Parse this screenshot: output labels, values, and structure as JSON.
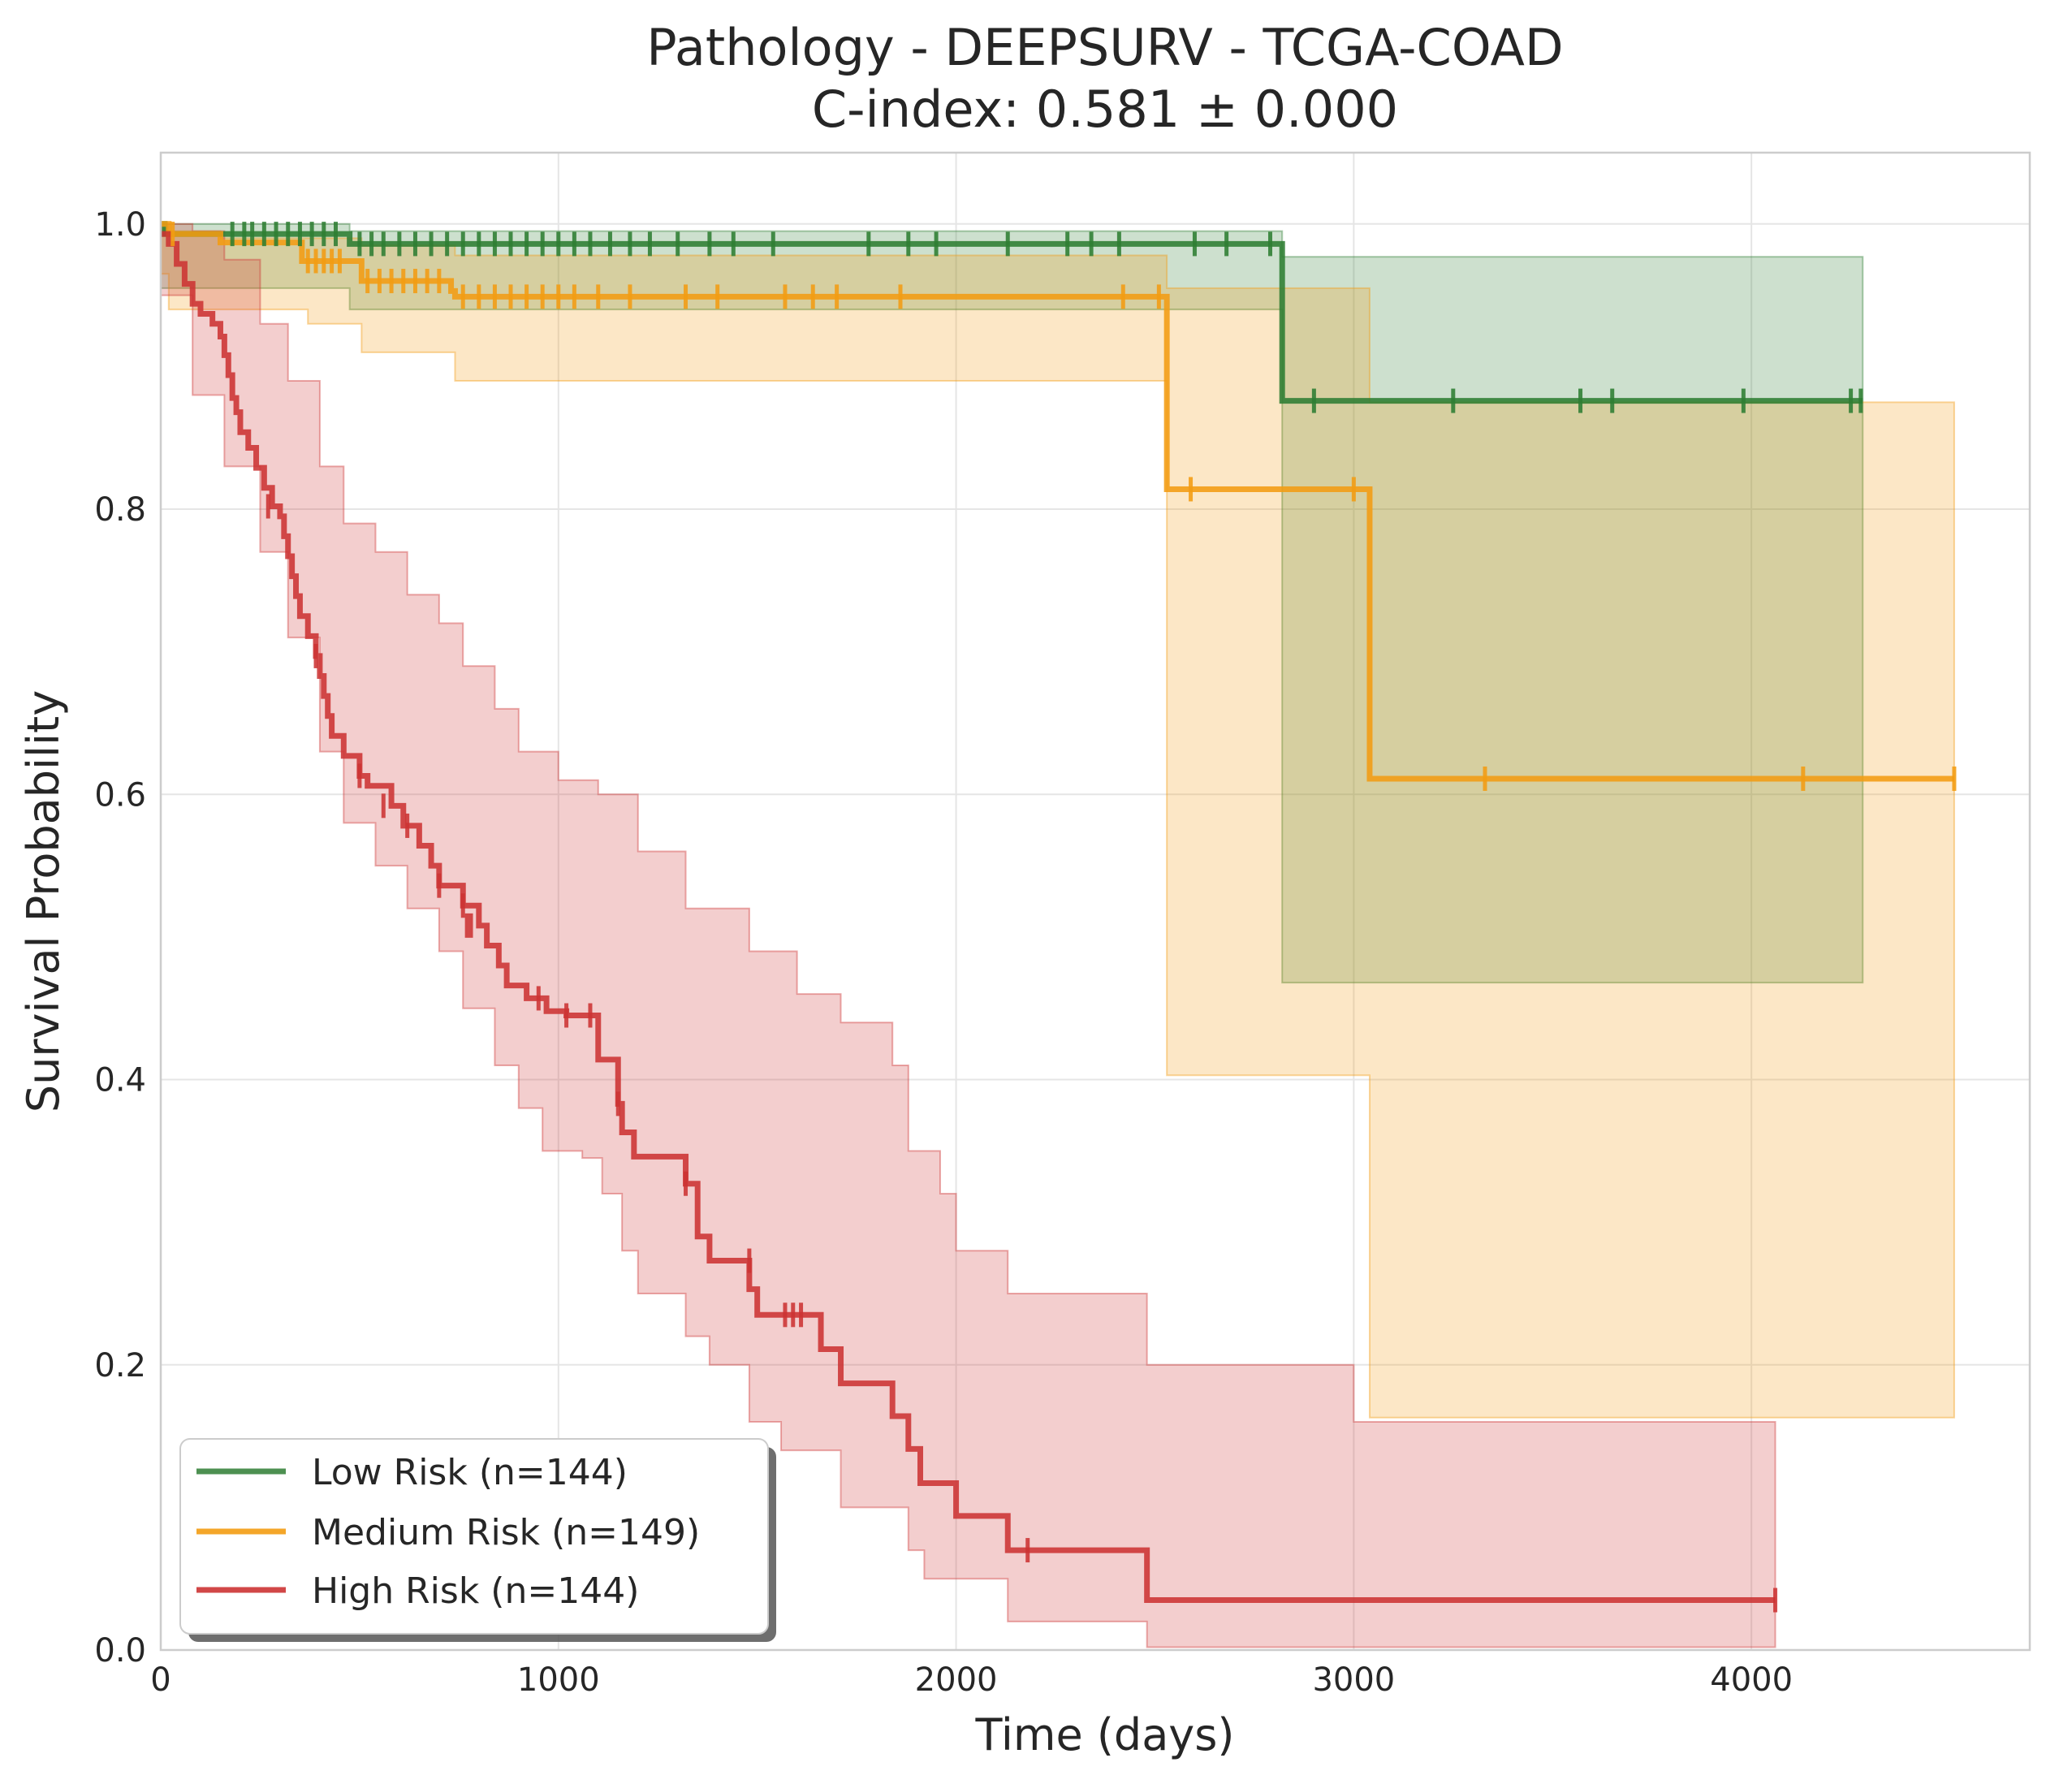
{
  "chart_data": {
    "type": "line",
    "subtype": "kaplan-meier",
    "title": "Pathology - DEEPSURV - TCGA-COAD",
    "subtitle": "C-index: 0.581 ± 0.000",
    "xlabel": "Time (days)",
    "ylabel": "Survival Probability",
    "xlim": [
      0,
      4700
    ],
    "ylim": [
      0,
      1.05
    ],
    "xticks": [
      0,
      1000,
      2000,
      3000,
      4000
    ],
    "xtick_labels": [
      "0",
      "1000",
      "2000",
      "3000",
      "4000"
    ],
    "yticks": [
      0.0,
      0.2,
      0.4,
      0.6,
      0.8,
      1.0
    ],
    "ytick_labels": [
      "0.0",
      "0.2",
      "0.4",
      "0.6",
      "0.8",
      "1.0"
    ],
    "grid": true,
    "legend_position": "lower-left",
    "series": [
      {
        "name": "Low Risk (n=144)",
        "color": "#2e7d32",
        "steps": [
          [
            0,
            1.0
          ],
          [
            10,
            0.993
          ],
          [
            475,
            0.986
          ],
          [
            2820,
            0.876
          ],
          [
            4280,
            0.876
          ]
        ],
        "ci_lower": [
          [
            0,
            0.955
          ],
          [
            10,
            0.955
          ],
          [
            475,
            0.94
          ],
          [
            2820,
            0.468
          ],
          [
            4280,
            0.468
          ]
        ],
        "ci_upper": [
          [
            0,
            1.0
          ],
          [
            10,
            1.0
          ],
          [
            475,
            0.995
          ],
          [
            2820,
            0.977
          ],
          [
            4280,
            0.977
          ]
        ],
        "censored": [
          [
            180,
            0.993
          ],
          [
            210,
            0.993
          ],
          [
            230,
            0.993
          ],
          [
            260,
            0.993
          ],
          [
            290,
            0.993
          ],
          [
            320,
            0.993
          ],
          [
            350,
            0.993
          ],
          [
            380,
            0.993
          ],
          [
            410,
            0.993
          ],
          [
            440,
            0.993
          ],
          [
            500,
            0.986
          ],
          [
            530,
            0.986
          ],
          [
            560,
            0.986
          ],
          [
            600,
            0.986
          ],
          [
            640,
            0.986
          ],
          [
            680,
            0.986
          ],
          [
            720,
            0.986
          ],
          [
            760,
            0.986
          ],
          [
            800,
            0.986
          ],
          [
            840,
            0.986
          ],
          [
            880,
            0.986
          ],
          [
            920,
            0.986
          ],
          [
            960,
            0.986
          ],
          [
            1000,
            0.986
          ],
          [
            1040,
            0.986
          ],
          [
            1080,
            0.986
          ],
          [
            1130,
            0.986
          ],
          [
            1180,
            0.986
          ],
          [
            1230,
            0.986
          ],
          [
            1300,
            0.986
          ],
          [
            1380,
            0.986
          ],
          [
            1440,
            0.986
          ],
          [
            1540,
            0.986
          ],
          [
            1780,
            0.986
          ],
          [
            1880,
            0.986
          ],
          [
            1950,
            0.986
          ],
          [
            2130,
            0.986
          ],
          [
            2280,
            0.986
          ],
          [
            2340,
            0.986
          ],
          [
            2410,
            0.986
          ],
          [
            2600,
            0.986
          ],
          [
            2680,
            0.986
          ],
          [
            2790,
            0.986
          ],
          [
            2900,
            0.876
          ],
          [
            3250,
            0.876
          ],
          [
            3570,
            0.876
          ],
          [
            3650,
            0.876
          ],
          [
            3980,
            0.876
          ],
          [
            4250,
            0.876
          ],
          [
            4275,
            0.876
          ]
        ]
      },
      {
        "name": "Medium Risk (n=149)",
        "color": "#f39c12",
        "steps": [
          [
            0,
            1.0
          ],
          [
            20,
            0.993
          ],
          [
            150,
            0.987
          ],
          [
            355,
            0.974
          ],
          [
            505,
            0.96
          ],
          [
            730,
            0.953
          ],
          [
            740,
            0.949
          ],
          [
            2530,
            0.814
          ],
          [
            3040,
            0.611
          ],
          [
            4510,
            0.611
          ]
        ],
        "ci_lower": [
          [
            0,
            0.965
          ],
          [
            20,
            0.94
          ],
          [
            370,
            0.93
          ],
          [
            505,
            0.91
          ],
          [
            740,
            0.89
          ],
          [
            2530,
            0.403
          ],
          [
            3040,
            0.163
          ],
          [
            4510,
            0.163
          ]
        ],
        "ci_upper": [
          [
            0,
            1.0
          ],
          [
            20,
            0.995
          ],
          [
            150,
            0.99
          ],
          [
            505,
            0.985
          ],
          [
            740,
            0.978
          ],
          [
            2530,
            0.955
          ],
          [
            3040,
            0.875
          ],
          [
            4510,
            0.875
          ]
        ],
        "censored": [
          [
            30,
            0.993
          ],
          [
            370,
            0.974
          ],
          [
            390,
            0.974
          ],
          [
            410,
            0.974
          ],
          [
            430,
            0.974
          ],
          [
            450,
            0.974
          ],
          [
            520,
            0.96
          ],
          [
            550,
            0.96
          ],
          [
            580,
            0.96
          ],
          [
            610,
            0.96
          ],
          [
            640,
            0.96
          ],
          [
            670,
            0.96
          ],
          [
            700,
            0.96
          ],
          [
            760,
            0.949
          ],
          [
            800,
            0.949
          ],
          [
            840,
            0.949
          ],
          [
            880,
            0.949
          ],
          [
            920,
            0.949
          ],
          [
            960,
            0.949
          ],
          [
            1000,
            0.949
          ],
          [
            1040,
            0.949
          ],
          [
            1100,
            0.949
          ],
          [
            1180,
            0.949
          ],
          [
            1320,
            0.949
          ],
          [
            1400,
            0.949
          ],
          [
            1570,
            0.949
          ],
          [
            1640,
            0.949
          ],
          [
            1700,
            0.949
          ],
          [
            1860,
            0.949
          ],
          [
            2420,
            0.949
          ],
          [
            2510,
            0.949
          ],
          [
            2590,
            0.814
          ],
          [
            3000,
            0.814
          ],
          [
            3330,
            0.611
          ],
          [
            4130,
            0.611
          ],
          [
            4510,
            0.611
          ]
        ]
      },
      {
        "name": "High Risk (n=144)",
        "color": "#cc3333",
        "steps": [
          [
            0,
            0.993
          ],
          [
            20,
            0.986
          ],
          [
            40,
            0.972
          ],
          [
            60,
            0.958
          ],
          [
            80,
            0.944
          ],
          [
            100,
            0.937
          ],
          [
            130,
            0.93
          ],
          [
            150,
            0.921
          ],
          [
            160,
            0.908
          ],
          [
            170,
            0.894
          ],
          [
            180,
            0.878
          ],
          [
            190,
            0.868
          ],
          [
            200,
            0.854
          ],
          [
            220,
            0.843
          ],
          [
            240,
            0.829
          ],
          [
            260,
            0.815
          ],
          [
            280,
            0.802
          ],
          [
            300,
            0.795
          ],
          [
            310,
            0.781
          ],
          [
            320,
            0.767
          ],
          [
            330,
            0.753
          ],
          [
            340,
            0.739
          ],
          [
            350,
            0.725
          ],
          [
            370,
            0.711
          ],
          [
            390,
            0.697
          ],
          [
            400,
            0.683
          ],
          [
            410,
            0.669
          ],
          [
            420,
            0.655
          ],
          [
            430,
            0.641
          ],
          [
            460,
            0.627
          ],
          [
            500,
            0.613
          ],
          [
            520,
            0.606
          ],
          [
            580,
            0.592
          ],
          [
            610,
            0.578
          ],
          [
            650,
            0.564
          ],
          [
            680,
            0.55
          ],
          [
            700,
            0.536
          ],
          [
            760,
            0.522
          ],
          [
            800,
            0.508
          ],
          [
            820,
            0.494
          ],
          [
            850,
            0.48
          ],
          [
            870,
            0.466
          ],
          [
            920,
            0.457
          ],
          [
            970,
            0.448
          ],
          [
            1020,
            0.445
          ],
          [
            1100,
            0.414
          ],
          [
            1150,
            0.383
          ],
          [
            1160,
            0.363
          ],
          [
            1190,
            0.346
          ],
          [
            1320,
            0.327
          ],
          [
            1350,
            0.29
          ],
          [
            1380,
            0.273
          ],
          [
            1480,
            0.253
          ],
          [
            1500,
            0.235
          ],
          [
            1660,
            0.211
          ],
          [
            1710,
            0.187
          ],
          [
            1840,
            0.164
          ],
          [
            1880,
            0.141
          ],
          [
            1910,
            0.117
          ],
          [
            2000,
            0.094
          ],
          [
            2130,
            0.07
          ],
          [
            2480,
            0.035
          ],
          [
            4060,
            0.035
          ]
        ],
        "ci_lower": [
          [
            0,
            0.95
          ],
          [
            80,
            0.88
          ],
          [
            160,
            0.83
          ],
          [
            250,
            0.77
          ],
          [
            320,
            0.71
          ],
          [
            400,
            0.63
          ],
          [
            460,
            0.58
          ],
          [
            540,
            0.55
          ],
          [
            620,
            0.52
          ],
          [
            700,
            0.49
          ],
          [
            760,
            0.45
          ],
          [
            840,
            0.41
          ],
          [
            900,
            0.38
          ],
          [
            960,
            0.35
          ],
          [
            1060,
            0.345
          ],
          [
            1110,
            0.32
          ],
          [
            1160,
            0.28
          ],
          [
            1200,
            0.25
          ],
          [
            1320,
            0.22
          ],
          [
            1380,
            0.2
          ],
          [
            1480,
            0.16
          ],
          [
            1560,
            0.14
          ],
          [
            1710,
            0.1
          ],
          [
            1880,
            0.07
          ],
          [
            1920,
            0.05
          ],
          [
            2130,
            0.02
          ],
          [
            2480,
            0.002
          ],
          [
            4060,
            0.002
          ]
        ],
        "ci_upper": [
          [
            0,
            1.0
          ],
          [
            40,
            1.0
          ],
          [
            80,
            0.995
          ],
          [
            160,
            0.975
          ],
          [
            250,
            0.93
          ],
          [
            320,
            0.89
          ],
          [
            400,
            0.83
          ],
          [
            460,
            0.79
          ],
          [
            540,
            0.77
          ],
          [
            620,
            0.74
          ],
          [
            700,
            0.72
          ],
          [
            760,
            0.69
          ],
          [
            840,
            0.66
          ],
          [
            900,
            0.63
          ],
          [
            1000,
            0.61
          ],
          [
            1100,
            0.6
          ],
          [
            1200,
            0.56
          ],
          [
            1320,
            0.52
          ],
          [
            1480,
            0.49
          ],
          [
            1600,
            0.46
          ],
          [
            1710,
            0.44
          ],
          [
            1840,
            0.41
          ],
          [
            1880,
            0.35
          ],
          [
            1960,
            0.32
          ],
          [
            2000,
            0.28
          ],
          [
            2130,
            0.25
          ],
          [
            2480,
            0.2
          ],
          [
            3000,
            0.16
          ],
          [
            4060,
            0.137
          ]
        ],
        "censored": [
          [
            270,
            0.802
          ],
          [
            390,
            0.697
          ],
          [
            500,
            0.613
          ],
          [
            560,
            0.592
          ],
          [
            620,
            0.578
          ],
          [
            700,
            0.536
          ],
          [
            760,
            0.522
          ],
          [
            770,
            0.508
          ],
          [
            780,
            0.508
          ],
          [
            950,
            0.457
          ],
          [
            1020,
            0.445
          ],
          [
            1080,
            0.445
          ],
          [
            1150,
            0.383
          ],
          [
            1320,
            0.327
          ],
          [
            1480,
            0.273
          ],
          [
            1570,
            0.235
          ],
          [
            1590,
            0.235
          ],
          [
            1610,
            0.235
          ],
          [
            2180,
            0.07
          ],
          [
            4060,
            0.035
          ]
        ]
      }
    ]
  }
}
